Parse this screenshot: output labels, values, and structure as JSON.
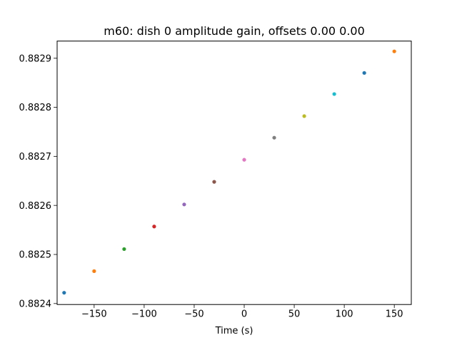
{
  "chart_data": {
    "type": "scatter",
    "title": "m60: dish 0 amplitude gain, offsets 0.00 0.00",
    "xlabel": "Time (s)",
    "ylabel": "",
    "xlim": [
      -187,
      167
    ],
    "ylim": [
      0.882398,
      0.882935
    ],
    "xticks": [
      -150,
      -100,
      -50,
      0,
      50,
      100,
      150
    ],
    "xtick_labels": [
      "−150",
      "−100",
      "−50",
      "0",
      "50",
      "100",
      "150"
    ],
    "yticks": [
      0.8824,
      0.8825,
      0.8826,
      0.8827,
      0.8828,
      0.8829
    ],
    "ytick_labels": [
      "0.8824",
      "0.8825",
      "0.8826",
      "0.8827",
      "0.8828",
      "0.8829"
    ],
    "grid": false,
    "legend": "none",
    "points": [
      {
        "x": -180,
        "y": 0.882422,
        "color": "#1f77b4"
      },
      {
        "x": -150,
        "y": 0.882466,
        "color": "#ff7f0e"
      },
      {
        "x": -120,
        "y": 0.882511,
        "color": "#2ca02c"
      },
      {
        "x": -90,
        "y": 0.882557,
        "color": "#d62728"
      },
      {
        "x": -60,
        "y": 0.882602,
        "color": "#9467bd"
      },
      {
        "x": -30,
        "y": 0.882648,
        "color": "#8c564b"
      },
      {
        "x": 0,
        "y": 0.882693,
        "color": "#e377c2"
      },
      {
        "x": 30,
        "y": 0.882738,
        "color": "#7f7f7f"
      },
      {
        "x": 60,
        "y": 0.882782,
        "color": "#bcbd22"
      },
      {
        "x": 90,
        "y": 0.882827,
        "color": "#17becf"
      },
      {
        "x": 120,
        "y": 0.88287,
        "color": "#1f77b4"
      },
      {
        "x": 150,
        "y": 0.882914,
        "color": "#ff7f0e"
      }
    ]
  }
}
